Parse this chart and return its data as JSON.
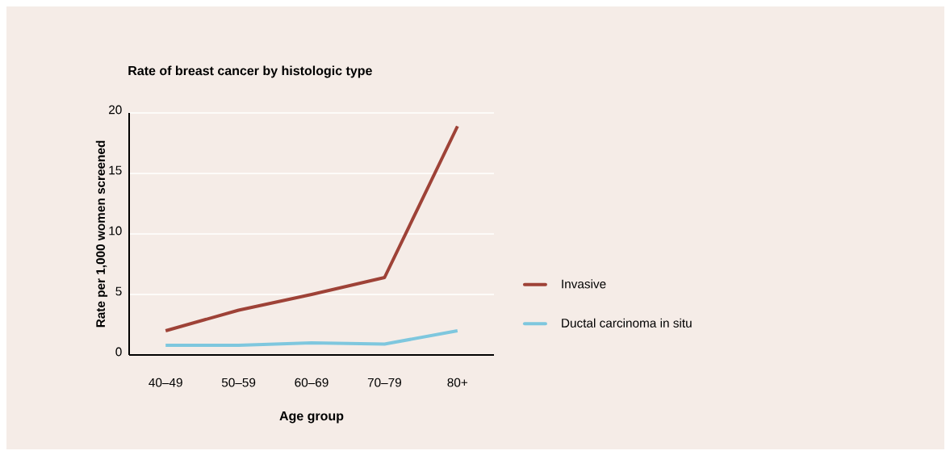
{
  "chart_data": {
    "type": "line",
    "title": "Rate of breast cancer by histologic type",
    "xlabel": "Age group",
    "ylabel": "Rate per 1,000 women screened",
    "categories": [
      "40–49",
      "50–59",
      "60–69",
      "70–79",
      "80+"
    ],
    "series": [
      {
        "name": "Invasive",
        "color": "#9e4237",
        "values": [
          2.0,
          3.7,
          5.0,
          6.4,
          18.9
        ]
      },
      {
        "name": "Ductal carcinoma in situ",
        "color": "#7ec7de",
        "values": [
          0.8,
          0.8,
          1.0,
          0.9,
          2.0
        ]
      }
    ],
    "ylim": [
      0,
      20
    ],
    "yticks": [
      0,
      5,
      10,
      15,
      20
    ],
    "grid": "y",
    "legend": "right",
    "line_style": "solid",
    "marker": "none"
  }
}
